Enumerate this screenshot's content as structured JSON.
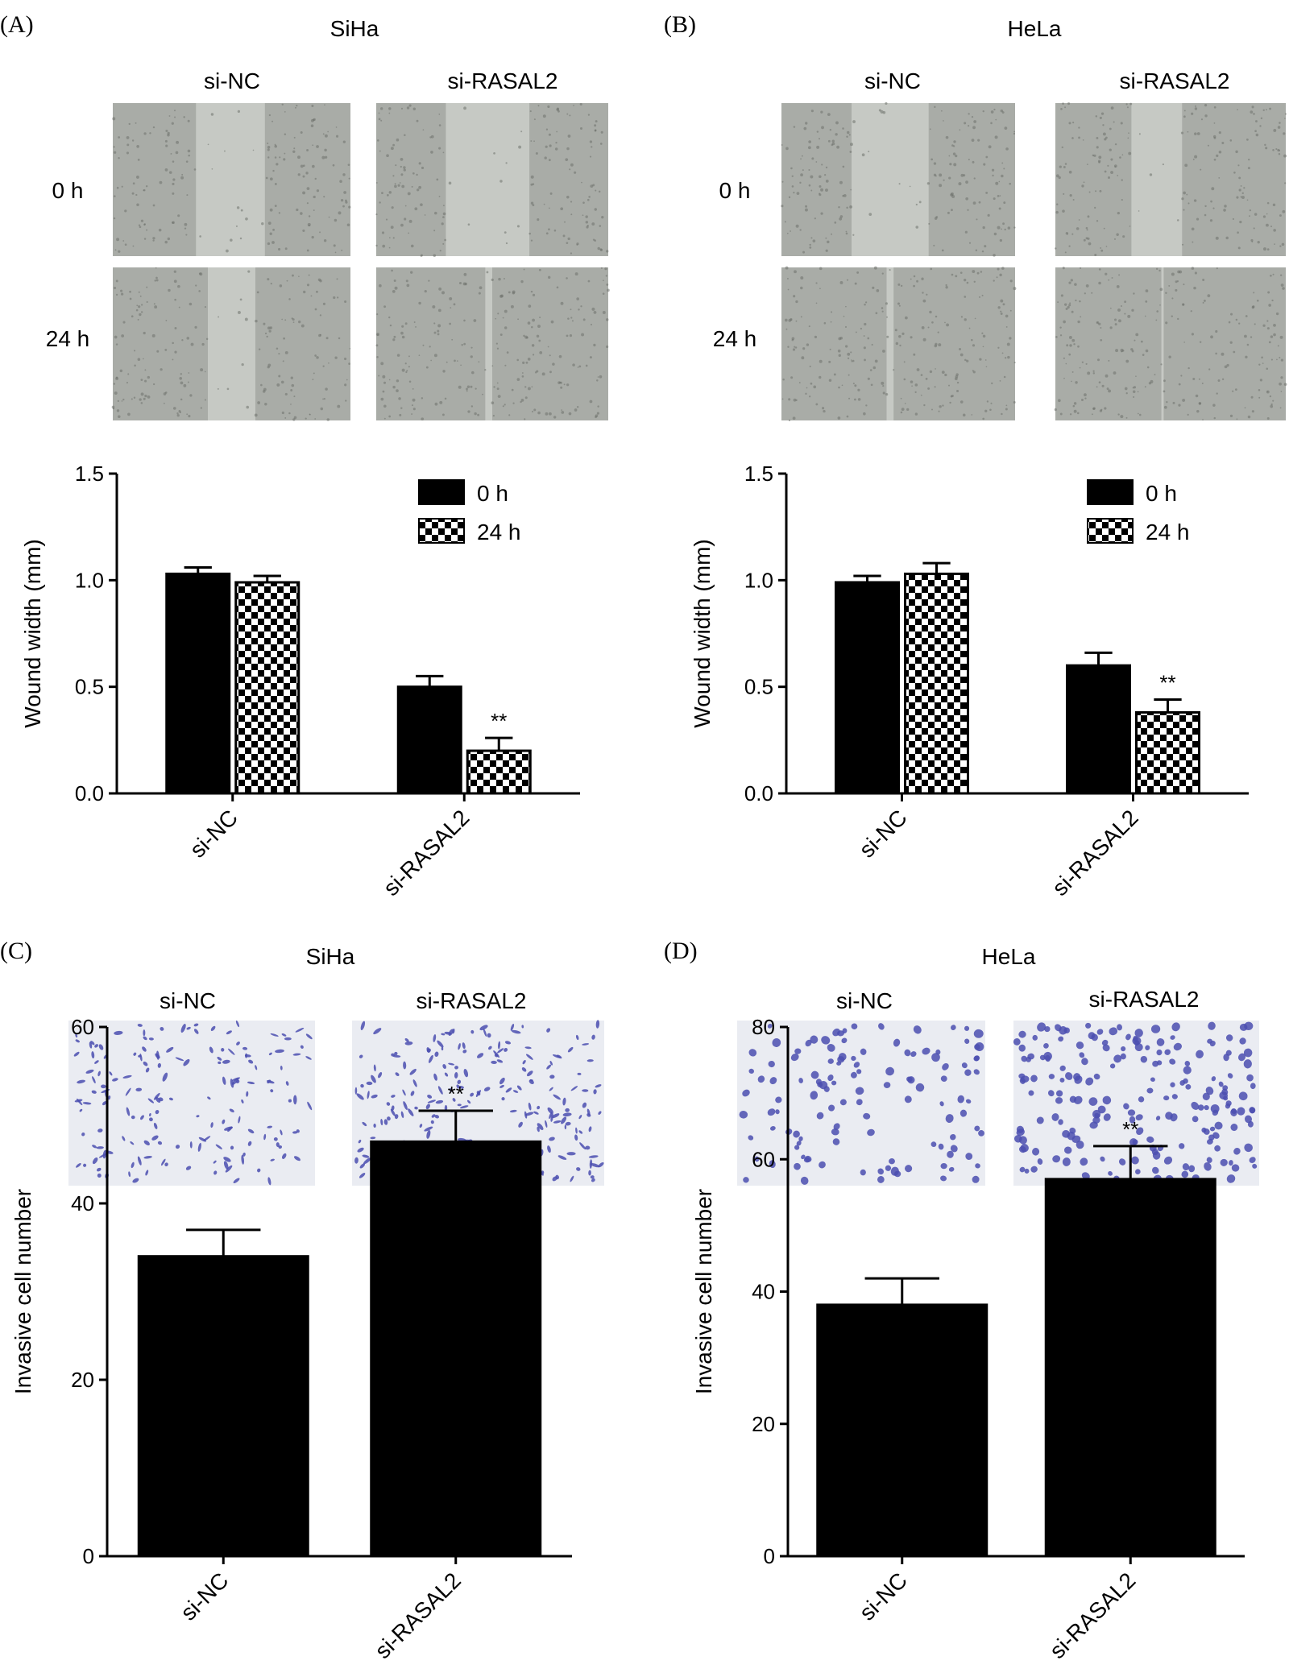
{
  "panels": [
    {
      "letter": "(A)",
      "cell_line": "SiHa",
      "groups": [
        "si-NC",
        "si-RASAL2"
      ],
      "timepoints": [
        "0 h",
        "24 h"
      ]
    },
    {
      "letter": "(B)",
      "cell_line": "HeLa",
      "groups": [
        "si-NC",
        "si-RASAL2"
      ],
      "timepoints": [
        "0 h",
        "24 h"
      ]
    },
    {
      "letter": "(C)",
      "cell_line": "SiHa",
      "groups": [
        "si-NC",
        "si-RASAL2"
      ]
    },
    {
      "letter": "(D)",
      "cell_line": "HeLa",
      "groups": [
        "si-NC",
        "si-RASAL2"
      ]
    }
  ],
  "colors": {
    "bar": "#000000",
    "scratch_bg": "#a9aca7",
    "scratch_gap": "#c6c9c4",
    "transwell_bg": "#eaecf2",
    "cell_stain": "#4b4fb0"
  },
  "chart_data": [
    {
      "type": "bar",
      "panel": "A",
      "ylabel": "Wound width (mm)",
      "ylim": [
        0,
        1.5
      ],
      "yticks": [
        "0.0",
        "0.5",
        "1.0",
        "1.5"
      ],
      "categories": [
        "si-NC",
        "si-RASAL2"
      ],
      "series": [
        {
          "name": "0 h",
          "values": [
            1.03,
            0.5
          ],
          "errors": [
            0.03,
            0.05
          ],
          "pattern": "solid"
        },
        {
          "name": "24 h",
          "values": [
            0.99,
            0.2
          ],
          "errors": [
            0.03,
            0.06
          ],
          "pattern": "checker"
        }
      ],
      "annotations": [
        {
          "category": 1,
          "series": 1,
          "text": "**"
        }
      ],
      "legend": "top-right"
    },
    {
      "type": "bar",
      "panel": "B",
      "ylabel": "Wound width (mm)",
      "ylim": [
        0,
        1.5
      ],
      "yticks": [
        "0.0",
        "0.5",
        "1.0",
        "1.5"
      ],
      "categories": [
        "si-NC",
        "si-RASAL2"
      ],
      "series": [
        {
          "name": "0 h",
          "values": [
            0.99,
            0.6
          ],
          "errors": [
            0.03,
            0.06
          ],
          "pattern": "solid"
        },
        {
          "name": "24 h",
          "values": [
            1.03,
            0.38
          ],
          "errors": [
            0.05,
            0.06
          ],
          "pattern": "checker"
        }
      ],
      "annotations": [
        {
          "category": 1,
          "series": 1,
          "text": "**"
        }
      ],
      "legend": "top-right"
    },
    {
      "type": "bar",
      "panel": "C",
      "ylabel": "Invasive cell number",
      "ylim": [
        0,
        60
      ],
      "yticks": [
        "0",
        "20",
        "40",
        "60"
      ],
      "categories": [
        "si-NC",
        "si-RASAL2"
      ],
      "series": [
        {
          "values": [
            34,
            47
          ],
          "errors": [
            3,
            3.5
          ],
          "pattern": "solid"
        }
      ],
      "annotations": [
        {
          "category": 1,
          "series": 0,
          "text": "**"
        }
      ]
    },
    {
      "type": "bar",
      "panel": "D",
      "ylabel": "Invasive cell number",
      "ylim": [
        0,
        80
      ],
      "yticks": [
        "0",
        "20",
        "40",
        "60",
        "80"
      ],
      "categories": [
        "si-NC",
        "si-RASAL2"
      ],
      "series": [
        {
          "values": [
            38,
            57
          ],
          "errors": [
            4,
            5
          ],
          "pattern": "solid"
        }
      ],
      "annotations": [
        {
          "category": 1,
          "series": 0,
          "text": "**"
        }
      ]
    }
  ]
}
